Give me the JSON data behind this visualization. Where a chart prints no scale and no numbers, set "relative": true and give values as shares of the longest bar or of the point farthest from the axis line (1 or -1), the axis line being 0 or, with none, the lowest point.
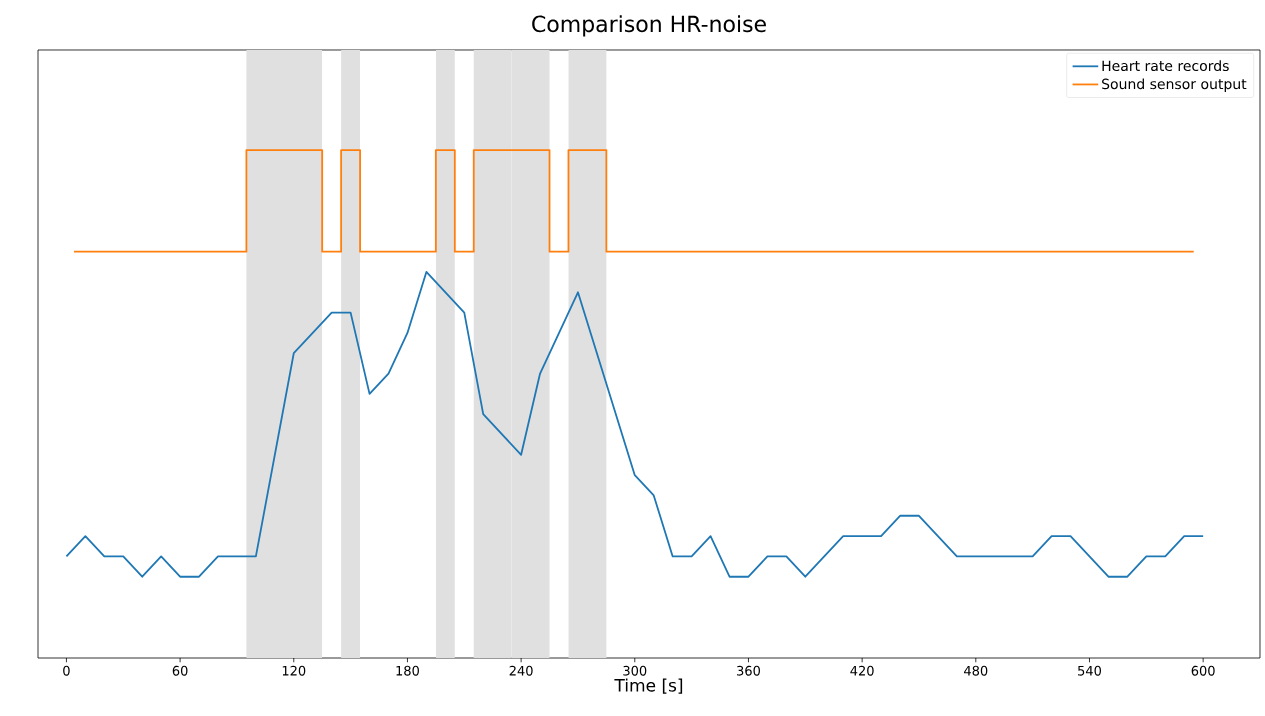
{
  "chart_data": {
    "type": "line",
    "title": "Comparison HR-noise",
    "xlabel": "Time [s]",
    "relative": true,
    "xlim": [
      -15,
      630
    ],
    "xticks": [
      0,
      60,
      120,
      180,
      240,
      300,
      360,
      420,
      480,
      540,
      600
    ],
    "tick_labels": "x",
    "grid": false,
    "legend": "top right",
    "line_style": "solid",
    "marker": "none",
    "bands": [
      {
        "axis": "x",
        "from": 95,
        "to": 135,
        "color": "#e0e0e0"
      },
      {
        "axis": "x",
        "from": 145,
        "to": 155,
        "color": "#e0e0e0"
      },
      {
        "axis": "x",
        "from": 195,
        "to": 205,
        "color": "#e0e0e0"
      },
      {
        "axis": "x",
        "from": 215,
        "to": 235,
        "color": "#e0e0e0"
      },
      {
        "axis": "x",
        "from": 235,
        "to": 255,
        "color": "#e0e0e0"
      },
      {
        "axis": "x",
        "from": 265,
        "to": 285,
        "color": "#e0e0e0"
      }
    ],
    "series": [
      {
        "name": "Heart rate records",
        "type": "line",
        "color": "#1f77b4",
        "x": [
          0,
          10,
          20,
          30,
          40,
          50,
          60,
          70,
          80,
          100,
          120,
          140,
          150,
          160,
          170,
          180,
          190,
          210,
          220,
          240,
          250,
          270,
          300,
          310,
          320,
          330,
          340,
          350,
          360,
          370,
          380,
          390,
          410,
          430,
          440,
          450,
          470,
          510,
          520,
          530,
          550,
          560,
          570,
          580,
          590,
          600
        ],
        "values": [
          0.2,
          0.24,
          0.2,
          0.2,
          0.16,
          0.2,
          0.16,
          0.16,
          0.2,
          0.2,
          0.6,
          0.68,
          0.68,
          0.52,
          0.56,
          0.64,
          0.76,
          0.68,
          0.48,
          0.4,
          0.56,
          0.72,
          0.36,
          0.32,
          0.2,
          0.2,
          0.24,
          0.16,
          0.16,
          0.2,
          0.2,
          0.16,
          0.24,
          0.24,
          0.28,
          0.28,
          0.2,
          0.2,
          0.24,
          0.24,
          0.16,
          0.16,
          0.2,
          0.2,
          0.24,
          0.24
        ]
      },
      {
        "name": "Sound sensor output",
        "type": "step",
        "color": "#ff7f0e",
        "x": [
          4,
          95,
          135,
          145,
          155,
          195,
          205,
          215,
          255,
          265,
          285,
          595
        ],
        "values": [
          0.8,
          1,
          0.8,
          1,
          0.8,
          1,
          0.8,
          1,
          0.8,
          1,
          0.8,
          0.8
        ]
      }
    ]
  }
}
